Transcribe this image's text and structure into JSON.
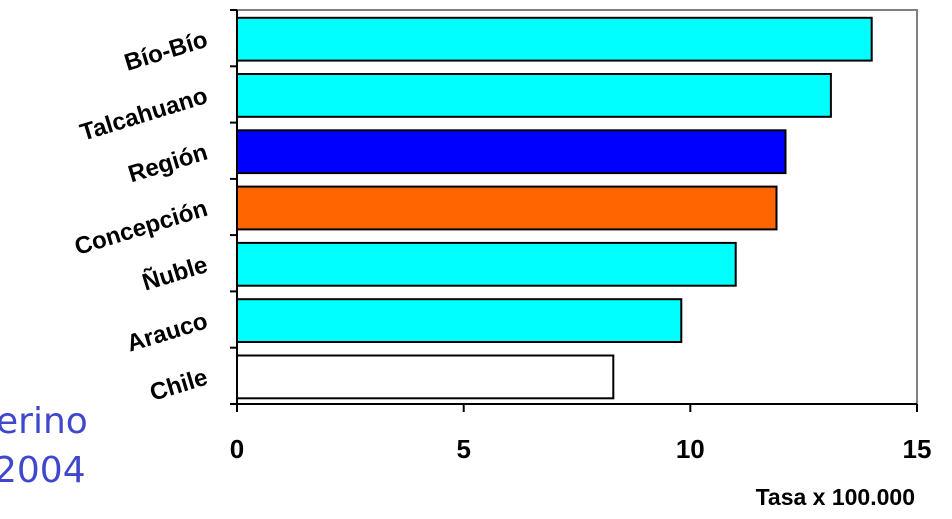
{
  "background_text": {
    "line1": "erino",
    "line2": "2004"
  },
  "chart_data": {
    "type": "bar",
    "orientation": "horizontal",
    "categories": [
      "Bío-Bío",
      "Talcahuano",
      "Región",
      "Concepción",
      "Ñuble",
      "Arauco",
      "Chile"
    ],
    "values": [
      14.0,
      13.1,
      12.1,
      11.9,
      11.0,
      9.8,
      8.3
    ],
    "bar_colors": [
      "#00ffff",
      "#00ffff",
      "#0000ff",
      "#ff6600",
      "#00ffff",
      "#00ffff",
      "#ffffff"
    ],
    "xlim": [
      0,
      15
    ],
    "xticks": [
      0,
      5,
      10,
      15
    ],
    "xlabel": "Tasa x 100.000",
    "ylabel": "",
    "title": "",
    "grid": false,
    "plot_border_color": "#808080",
    "bar_edge_color": "#000000"
  }
}
